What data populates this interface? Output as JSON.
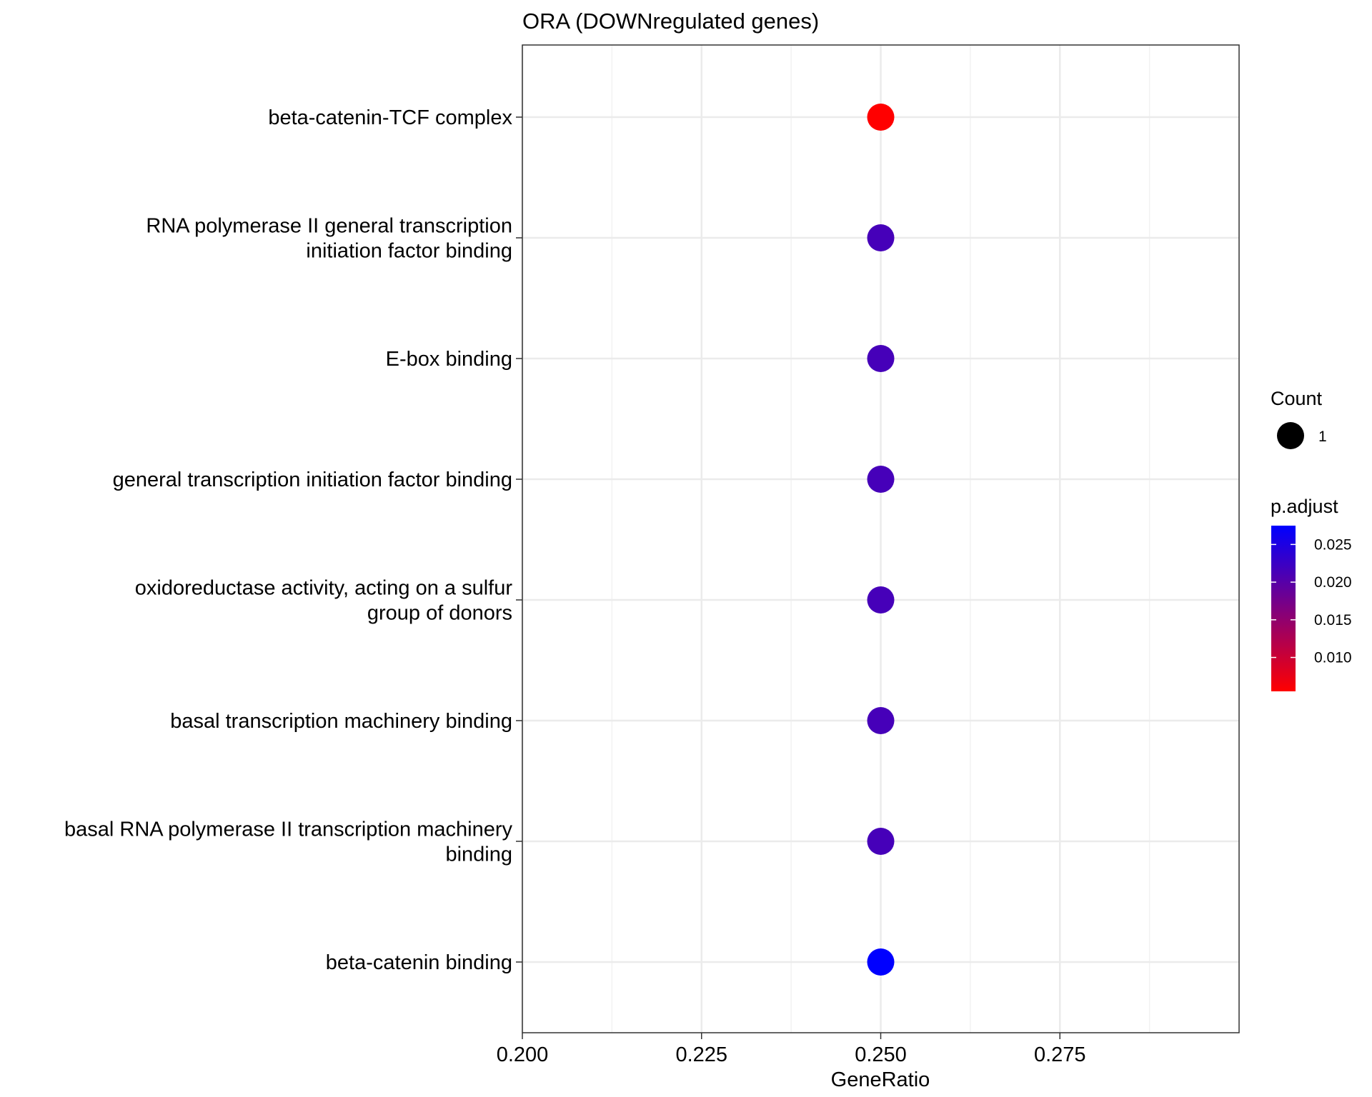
{
  "chart_data": {
    "type": "scatter",
    "title": "ORA (DOWNregulated genes)",
    "xlabel": "GeneRatio",
    "ylabel": "",
    "xlim": [
      0.2,
      0.3
    ],
    "x_ticks": [
      0.2,
      0.225,
      0.25,
      0.275
    ],
    "x_tick_labels": [
      "0.200",
      "0.225",
      "0.250",
      "0.275"
    ],
    "grid": true,
    "categories": [
      [
        "beta-catenin-TCF complex"
      ],
      [
        "RNA polymerase II general transcription",
        "initiation factor binding"
      ],
      [
        "E-box binding"
      ],
      [
        "general transcription initiation factor binding"
      ],
      [
        "oxidoreductase activity, acting on a sulfur",
        "group of donors"
      ],
      [
        "basal transcription machinery binding"
      ],
      [
        "basal RNA polymerase II transcription machinery",
        "binding"
      ],
      [
        "beta-catenin binding"
      ]
    ],
    "points": [
      {
        "gene_ratio": 0.25,
        "count": 1,
        "p_adjust": 0.0055
      },
      {
        "gene_ratio": 0.25,
        "count": 1,
        "p_adjust": 0.0215
      },
      {
        "gene_ratio": 0.25,
        "count": 1,
        "p_adjust": 0.0215
      },
      {
        "gene_ratio": 0.25,
        "count": 1,
        "p_adjust": 0.0215
      },
      {
        "gene_ratio": 0.25,
        "count": 1,
        "p_adjust": 0.0215
      },
      {
        "gene_ratio": 0.25,
        "count": 1,
        "p_adjust": 0.0215
      },
      {
        "gene_ratio": 0.25,
        "count": 1,
        "p_adjust": 0.0215
      },
      {
        "gene_ratio": 0.25,
        "count": 1,
        "p_adjust": 0.0275
      }
    ],
    "legend": {
      "position": "right",
      "size_title": "Count",
      "size_items": [
        {
          "label": "1",
          "value": 1
        }
      ],
      "color_title": "p.adjust",
      "color_range": [
        0.0055,
        0.0275
      ],
      "color_low": "#ff0000",
      "color_high": "#0000ff",
      "color_ticks": [
        0.01,
        0.015,
        0.02,
        0.025
      ],
      "color_tick_labels": [
        "0.010",
        "0.015",
        "0.020",
        "0.025"
      ]
    }
  }
}
